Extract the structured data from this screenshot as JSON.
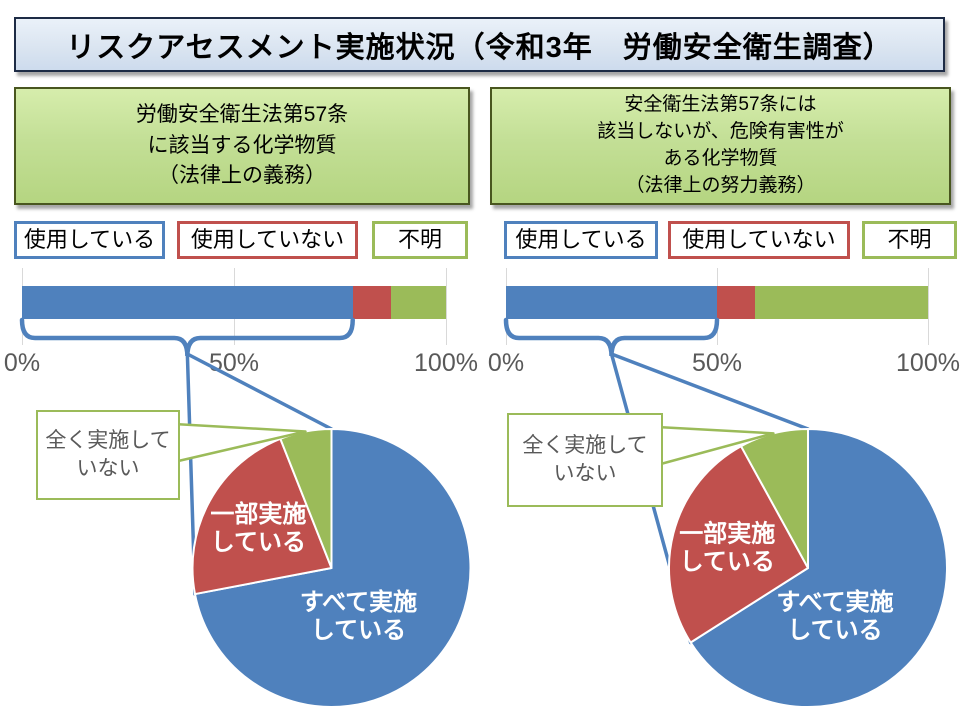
{
  "title": "リスクアセスメント実施状況（令和3年　労働安全衛生調査）",
  "accent_colors": {
    "blue": "#4F81BD",
    "red": "#C0504D",
    "green": "#9BBB59"
  },
  "panels": [
    {
      "law_box": "労働安全衛生法第57条\nに該当する化学物質\n（法律上の義務）",
      "legend": [
        {
          "label": "使用している",
          "color": "#4F81BD"
        },
        {
          "label": "使用していない",
          "color": "#C0504D"
        },
        {
          "label": "不明",
          "color": "#9BBB59"
        }
      ],
      "ticks": [
        "0%",
        "50%",
        "100%"
      ],
      "callout": "全く実施して\nいない"
    },
    {
      "law_box": "安全衛生法第57条には\n該当しないが、危険有害性が\nある化学物質\n（法律上の努力義務）",
      "legend": [
        {
          "label": "使用している",
          "color": "#4F81BD"
        },
        {
          "label": "使用していない",
          "color": "#C0504D"
        },
        {
          "label": "不明",
          "color": "#9BBB59"
        }
      ],
      "ticks": [
        "0%",
        "50%",
        "100%"
      ],
      "callout": "全く実施して\nいない"
    }
  ],
  "chart_data": [
    {
      "type": "bar",
      "panel": 0,
      "orientation": "horizontal_stacked",
      "categories": [
        "使用している",
        "使用していない",
        "不明"
      ],
      "values": [
        78,
        9,
        13
      ],
      "unit": "%",
      "colors": [
        "#4F81BD",
        "#C0504D",
        "#9BBB59"
      ],
      "xlim": [
        0,
        100
      ],
      "tick_labels": [
        "0%",
        "50%",
        "100%"
      ],
      "grid": true
    },
    {
      "type": "pie",
      "panel": 0,
      "labels": [
        "すべて実施している",
        "一部実施している",
        "全く実施していない"
      ],
      "display_labels": [
        "すべて実施\nしている",
        "一部実施\nしている",
        "全く実施して\nいない"
      ],
      "values": [
        72,
        22,
        6
      ],
      "unit": "%",
      "colors": [
        "#4F81BD",
        "#C0504D",
        "#9BBB59"
      ],
      "start_angle_deg": 0,
      "direction": "clockwise"
    },
    {
      "type": "bar",
      "panel": 1,
      "orientation": "horizontal_stacked",
      "categories": [
        "使用している",
        "使用していない",
        "不明"
      ],
      "values": [
        50,
        9,
        41
      ],
      "unit": "%",
      "colors": [
        "#4F81BD",
        "#C0504D",
        "#9BBB59"
      ],
      "xlim": [
        0,
        100
      ],
      "tick_labels": [
        "0%",
        "50%",
        "100%"
      ],
      "grid": true
    },
    {
      "type": "pie",
      "panel": 1,
      "labels": [
        "すべて実施している",
        "一部実施している",
        "全く実施していない"
      ],
      "display_labels": [
        "すべて実施\nしている",
        "一部実施\nしている",
        "全く実施して\nいない"
      ],
      "values": [
        66,
        26,
        8
      ],
      "unit": "%",
      "colors": [
        "#4F81BD",
        "#C0504D",
        "#9BBB59"
      ],
      "start_angle_deg": 0,
      "direction": "clockwise"
    }
  ]
}
